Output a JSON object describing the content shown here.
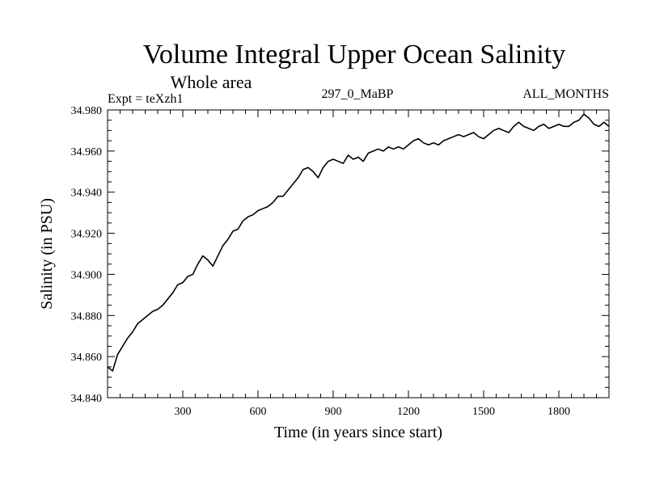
{
  "chart_data": {
    "type": "line",
    "title": "Volume Integral Upper Ocean Salinity",
    "subtitle": "Whole area",
    "experiment": "Expt = teXzh1",
    "run_id": "297_0_MaBP",
    "months": "ALL_MONTHS",
    "xlabel": "Time (in years since start)",
    "ylabel": "Salinity (in PSU)",
    "xlim": [
      0,
      2000
    ],
    "ylim": [
      34.84,
      34.98
    ],
    "x_ticks": [
      300,
      600,
      900,
      1200,
      1500,
      1800
    ],
    "x_tick_labels": [
      "300",
      "600",
      "900",
      "1200",
      "1500",
      "1800"
    ],
    "y_ticks": [
      34.84,
      34.86,
      34.88,
      34.9,
      34.92,
      34.94,
      34.96,
      34.98
    ],
    "y_tick_labels": [
      "34.840",
      "34.860",
      "34.880",
      "34.900",
      "34.920",
      "34.940",
      "34.960",
      "34.980"
    ],
    "grid": false,
    "series": [
      {
        "name": "Salinity",
        "x": [
          0,
          20,
          40,
          60,
          80,
          100,
          120,
          140,
          160,
          180,
          200,
          220,
          240,
          260,
          280,
          300,
          320,
          340,
          360,
          380,
          400,
          420,
          440,
          460,
          480,
          500,
          520,
          540,
          560,
          580,
          600,
          620,
          640,
          660,
          680,
          700,
          720,
          740,
          760,
          780,
          800,
          820,
          840,
          860,
          880,
          900,
          920,
          940,
          960,
          980,
          1000,
          1020,
          1040,
          1060,
          1080,
          1100,
          1120,
          1140,
          1160,
          1180,
          1200,
          1220,
          1240,
          1260,
          1280,
          1300,
          1320,
          1340,
          1360,
          1380,
          1400,
          1420,
          1440,
          1460,
          1480,
          1500,
          1520,
          1540,
          1560,
          1580,
          1600,
          1620,
          1640,
          1660,
          1680,
          1700,
          1720,
          1740,
          1760,
          1780,
          1800,
          1820,
          1840,
          1860,
          1880,
          1900,
          1920,
          1940,
          1960,
          1980,
          2000
        ],
        "values": [
          34.855,
          34.853,
          34.861,
          34.865,
          34.869,
          34.872,
          34.876,
          34.878,
          34.88,
          34.882,
          34.883,
          34.885,
          34.888,
          34.891,
          34.895,
          34.896,
          34.899,
          34.9,
          34.905,
          34.909,
          34.907,
          34.904,
          34.909,
          34.914,
          34.917,
          34.921,
          34.922,
          34.926,
          34.928,
          34.929,
          34.931,
          34.932,
          34.933,
          34.935,
          34.938,
          34.938,
          34.941,
          34.944,
          34.947,
          34.951,
          34.952,
          34.95,
          34.947,
          34.952,
          34.955,
          34.956,
          34.955,
          34.954,
          34.958,
          34.956,
          34.957,
          34.955,
          34.959,
          34.96,
          34.961,
          34.96,
          34.962,
          34.961,
          34.962,
          34.961,
          34.963,
          34.965,
          34.966,
          34.964,
          34.963,
          34.964,
          34.963,
          34.965,
          34.966,
          34.967,
          34.968,
          34.967,
          34.968,
          34.969,
          34.967,
          34.966,
          34.968,
          34.97,
          34.971,
          34.97,
          34.969,
          34.972,
          34.974,
          34.972,
          34.971,
          34.97,
          34.972,
          34.973,
          34.971,
          34.972,
          34.973,
          34.972,
          34.972,
          34.974,
          34.975,
          34.978,
          34.976,
          34.973,
          34.972,
          34.974,
          34.972
        ]
      }
    ]
  }
}
